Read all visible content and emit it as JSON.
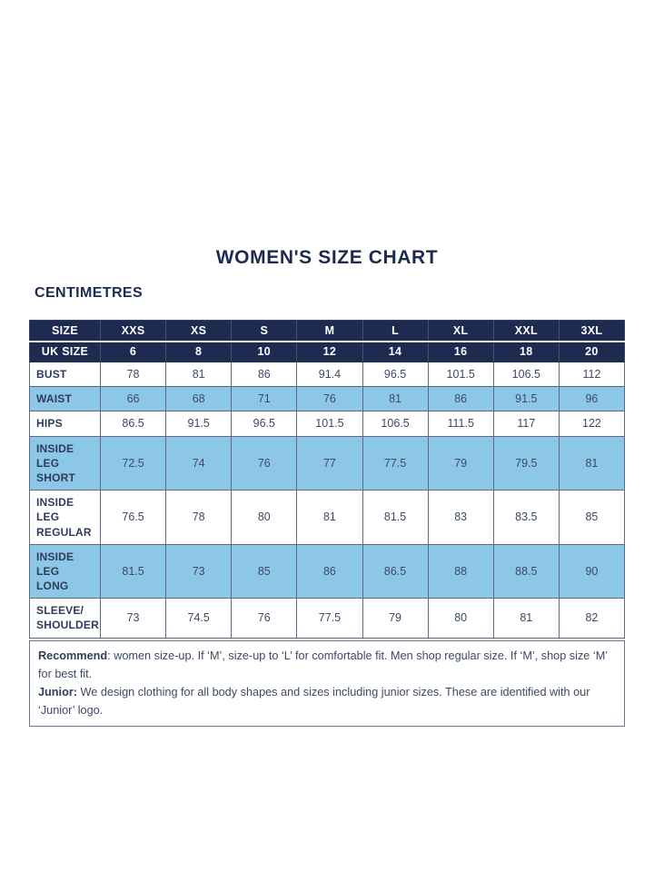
{
  "page": {
    "title": "WOMEN'S SIZE CHART",
    "unit_label": "CENTIMETRES"
  },
  "colors": {
    "header_bg": "#1e2b50",
    "alt_row_bg": "#8dc7e8",
    "title_text": "#1e2b50",
    "body_text": "#3d4a64",
    "cell_border": "#5f6a7c"
  },
  "table": {
    "header_rows": [
      {
        "label": "SIZE",
        "values": [
          "XXS",
          "XS",
          "S",
          "M",
          "L",
          "XL",
          "XXL",
          "3XL"
        ]
      },
      {
        "label": "UK SIZE",
        "values": [
          "6",
          "8",
          "10",
          "12",
          "14",
          "16",
          "18",
          "20"
        ]
      }
    ],
    "rows": [
      {
        "label": "BUST",
        "values": [
          "78",
          "81",
          "86",
          "91.4",
          "96.5",
          "101.5",
          "106.5",
          "112"
        ]
      },
      {
        "label": "WAIST",
        "values": [
          "66",
          "68",
          "71",
          "76",
          "81",
          "86",
          "91.5",
          "96"
        ]
      },
      {
        "label": "HIPS",
        "values": [
          "86.5",
          "91.5",
          "96.5",
          "101.5",
          "106.5",
          "111.5",
          "117",
          "122"
        ]
      },
      {
        "label": "INSIDE LEG\nSHORT",
        "values": [
          "72.5",
          "74",
          "76",
          "77",
          "77.5",
          "79",
          "79.5",
          "81"
        ]
      },
      {
        "label": "INSIDE LEG\nREGULAR",
        "values": [
          "76.5",
          "78",
          "80",
          "81",
          "81.5",
          "83",
          "83.5",
          "85"
        ]
      },
      {
        "label": "INSIDE LEG\nLONG",
        "values": [
          "81.5",
          "73",
          "85",
          "86",
          "86.5",
          "88",
          "88.5",
          "90"
        ]
      },
      {
        "label": "SLEEVE/\nSHOULDER",
        "values": [
          "73",
          "74.5",
          "76",
          "77.5",
          "79",
          "80",
          "81",
          "82"
        ]
      }
    ]
  },
  "footnote": {
    "line1_bold": "Recommend",
    "line1_rest": ": women size-up. If ‘M’, size-up to ‘L’ for comfortable fit. Men shop regular size. If ‘M’, shop size ‘M’ for best fit.",
    "line2_bold": "Junior:",
    "line2_rest": " We design clothing for all body shapes and sizes including junior sizes. These are identified with our ‘Junior’ logo."
  },
  "chart_data": {
    "type": "table",
    "title": "WOMEN'S SIZE CHART",
    "unit": "CENTIMETRES",
    "columns": [
      "SIZE",
      "XXS",
      "XS",
      "S",
      "M",
      "L",
      "XL",
      "XXL",
      "3XL"
    ],
    "rows": [
      [
        "UK SIZE",
        6,
        8,
        10,
        12,
        14,
        16,
        18,
        20
      ],
      [
        "BUST",
        78,
        81,
        86,
        91.4,
        96.5,
        101.5,
        106.5,
        112
      ],
      [
        "WAIST",
        66,
        68,
        71,
        76,
        81,
        86,
        91.5,
        96
      ],
      [
        "HIPS",
        86.5,
        91.5,
        96.5,
        101.5,
        106.5,
        111.5,
        117,
        122
      ],
      [
        "INSIDE LEG SHORT",
        72.5,
        74,
        76,
        77,
        77.5,
        79,
        79.5,
        81
      ],
      [
        "INSIDE LEG REGULAR",
        76.5,
        78,
        80,
        81,
        81.5,
        83,
        83.5,
        85
      ],
      [
        "INSIDE LEG LONG",
        81.5,
        73,
        85,
        86,
        86.5,
        88,
        88.5,
        90
      ],
      [
        "SLEEVE/SHOULDER",
        73,
        74.5,
        76,
        77.5,
        79,
        80,
        81,
        82
      ]
    ]
  }
}
